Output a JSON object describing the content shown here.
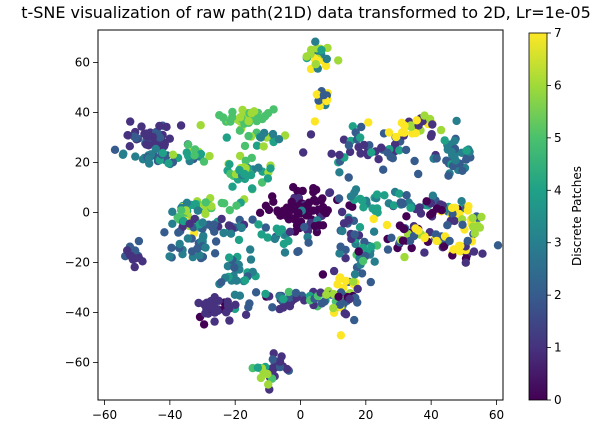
{
  "chart_data": {
    "type": "scatter",
    "title": "t-SNE visualization of raw path(21D) data transformed to 2D, Lr=1e-05",
    "xlabel": "",
    "ylabel": "",
    "xlim": [
      -62,
      62
    ],
    "ylim": [
      -75,
      73
    ],
    "xticks": [
      -60,
      -40,
      -20,
      0,
      20,
      40,
      60
    ],
    "yticks": [
      -60,
      -40,
      -20,
      0,
      20,
      40,
      60
    ],
    "colorbar": {
      "label": "Discrete Patches",
      "range": [
        0,
        7
      ],
      "ticks": [
        0,
        1,
        2,
        3,
        4,
        5,
        6,
        7
      ],
      "colormap": "viridis",
      "colors": [
        "#440154",
        "#46327e",
        "#365c8d",
        "#277f8e",
        "#1fa187",
        "#4ac16d",
        "#a0da39",
        "#fde725"
      ]
    },
    "clusters": [
      {
        "x": 0,
        "y": 2,
        "sx": 6,
        "sy": 4,
        "n": 70,
        "c": [
          0,
          0,
          0,
          0,
          1,
          0
        ]
      },
      {
        "x": 0,
        "y": 0,
        "sx": 1.5,
        "sy": 2,
        "n": 12,
        "c": [
          0,
          1,
          3
        ]
      },
      {
        "x": 4,
        "y": -5,
        "sx": 2,
        "sy": 2,
        "n": 8,
        "c": [
          0,
          1,
          3
        ]
      },
      {
        "x": -46,
        "y": 30,
        "sx": 4,
        "sy": 2.5,
        "n": 45,
        "c": [
          1,
          1,
          1,
          2
        ]
      },
      {
        "x": -44,
        "y": 22,
        "sx": 5,
        "sy": 1.5,
        "n": 30,
        "c": [
          2,
          3,
          3,
          4
        ]
      },
      {
        "x": -32,
        "y": 24,
        "sx": 3,
        "sy": 1.5,
        "n": 12,
        "c": [
          5,
          6,
          4
        ]
      },
      {
        "x": -51,
        "y": -17,
        "sx": 1.5,
        "sy": 2,
        "n": 15,
        "c": [
          1,
          1,
          2
        ]
      },
      {
        "x": -17,
        "y": 38,
        "sx": 4,
        "sy": 2,
        "n": 40,
        "c": [
          6,
          5,
          6,
          5
        ]
      },
      {
        "x": -14,
        "y": 30,
        "sx": 4,
        "sy": 2,
        "n": 18,
        "c": [
          5,
          4,
          6,
          3
        ]
      },
      {
        "x": -17,
        "y": 15,
        "sx": 4,
        "sy": 4,
        "n": 35,
        "c": [
          5,
          4,
          4,
          6,
          3
        ]
      },
      {
        "x": 5,
        "y": 62,
        "sx": 2,
        "sy": 3,
        "n": 22,
        "c": [
          4,
          6,
          7,
          3
        ]
      },
      {
        "x": 6,
        "y": 45,
        "sx": 1.5,
        "sy": 3,
        "n": 12,
        "c": [
          2,
          3,
          7
        ]
      },
      {
        "x": 20,
        "y": 26,
        "sx": 9,
        "sy": 4,
        "n": 45,
        "c": [
          1,
          2,
          1,
          2,
          4
        ]
      },
      {
        "x": 35,
        "y": 34,
        "sx": 5,
        "sy": 2,
        "n": 30,
        "c": [
          7,
          6,
          7,
          1
        ]
      },
      {
        "x": 47,
        "y": 24,
        "sx": 3,
        "sy": 4,
        "n": 40,
        "c": [
          3,
          4,
          3,
          2
        ]
      },
      {
        "x": -30,
        "y": 3,
        "sx": 5,
        "sy": 2,
        "n": 25,
        "c": [
          4,
          5,
          6
        ]
      },
      {
        "x": -36,
        "y": -2,
        "sx": 3,
        "sy": 3,
        "n": 20,
        "c": [
          6,
          5,
          7,
          3
        ]
      },
      {
        "x": -28,
        "y": -6,
        "sx": 8,
        "sy": 2,
        "n": 35,
        "c": [
          2,
          2,
          3,
          1,
          4
        ]
      },
      {
        "x": -32,
        "y": -14,
        "sx": 6,
        "sy": 3,
        "n": 25,
        "c": [
          2,
          3,
          2
        ]
      },
      {
        "x": -20,
        "y": -24,
        "sx": 3,
        "sy": 5,
        "n": 30,
        "c": [
          3,
          2,
          3,
          4
        ]
      },
      {
        "x": -25,
        "y": -38,
        "sx": 4,
        "sy": 2,
        "n": 35,
        "c": [
          1,
          1,
          0,
          1
        ]
      },
      {
        "x": -8,
        "y": -10,
        "sx": 6,
        "sy": 3,
        "n": 20,
        "c": [
          2,
          3,
          1,
          4
        ]
      },
      {
        "x": -5,
        "y": -35,
        "sx": 3,
        "sy": 2,
        "n": 15,
        "c": [
          2,
          1,
          0
        ]
      },
      {
        "x": 5,
        "y": -35,
        "sx": 7,
        "sy": 2,
        "n": 30,
        "c": [
          3,
          2,
          4,
          5,
          1
        ]
      },
      {
        "x": 13,
        "y": -33,
        "sx": 4,
        "sy": 5,
        "n": 35,
        "c": [
          7,
          6,
          0,
          1,
          2
        ]
      },
      {
        "x": 20,
        "y": -15,
        "sx": 3,
        "sy": 4,
        "n": 25,
        "c": [
          4,
          3,
          2,
          5
        ]
      },
      {
        "x": 22,
        "y": 6,
        "sx": 4,
        "sy": 3,
        "n": 12,
        "c": [
          4,
          3
        ]
      },
      {
        "x": 15,
        "y": -5,
        "sx": 2,
        "sy": 6,
        "n": 20,
        "c": [
          2,
          3,
          1,
          0
        ]
      },
      {
        "x": 32,
        "y": 3,
        "sx": 8,
        "sy": 1.5,
        "n": 35,
        "c": [
          3,
          2,
          4,
          1
        ]
      },
      {
        "x": 45,
        "y": 0,
        "sx": 4,
        "sy": 2,
        "n": 20,
        "c": [
          0,
          1,
          2,
          7
        ]
      },
      {
        "x": 35,
        "y": -10,
        "sx": 6,
        "sy": 3,
        "n": 35,
        "c": [
          7,
          0,
          1,
          6,
          2
        ]
      },
      {
        "x": 48,
        "y": -14,
        "sx": 5,
        "sy": 3,
        "n": 25,
        "c": [
          1,
          7,
          2,
          0
        ]
      },
      {
        "x": 53,
        "y": -5,
        "sx": 2,
        "sy": 3,
        "n": 15,
        "c": [
          7,
          6,
          2
        ]
      },
      {
        "x": -7,
        "y": -62,
        "sx": 2,
        "sy": 3,
        "n": 18,
        "c": [
          1,
          1,
          2
        ]
      },
      {
        "x": -12,
        "y": -64,
        "sx": 2,
        "sy": 2,
        "n": 10,
        "c": [
          5,
          4,
          6
        ]
      }
    ]
  }
}
